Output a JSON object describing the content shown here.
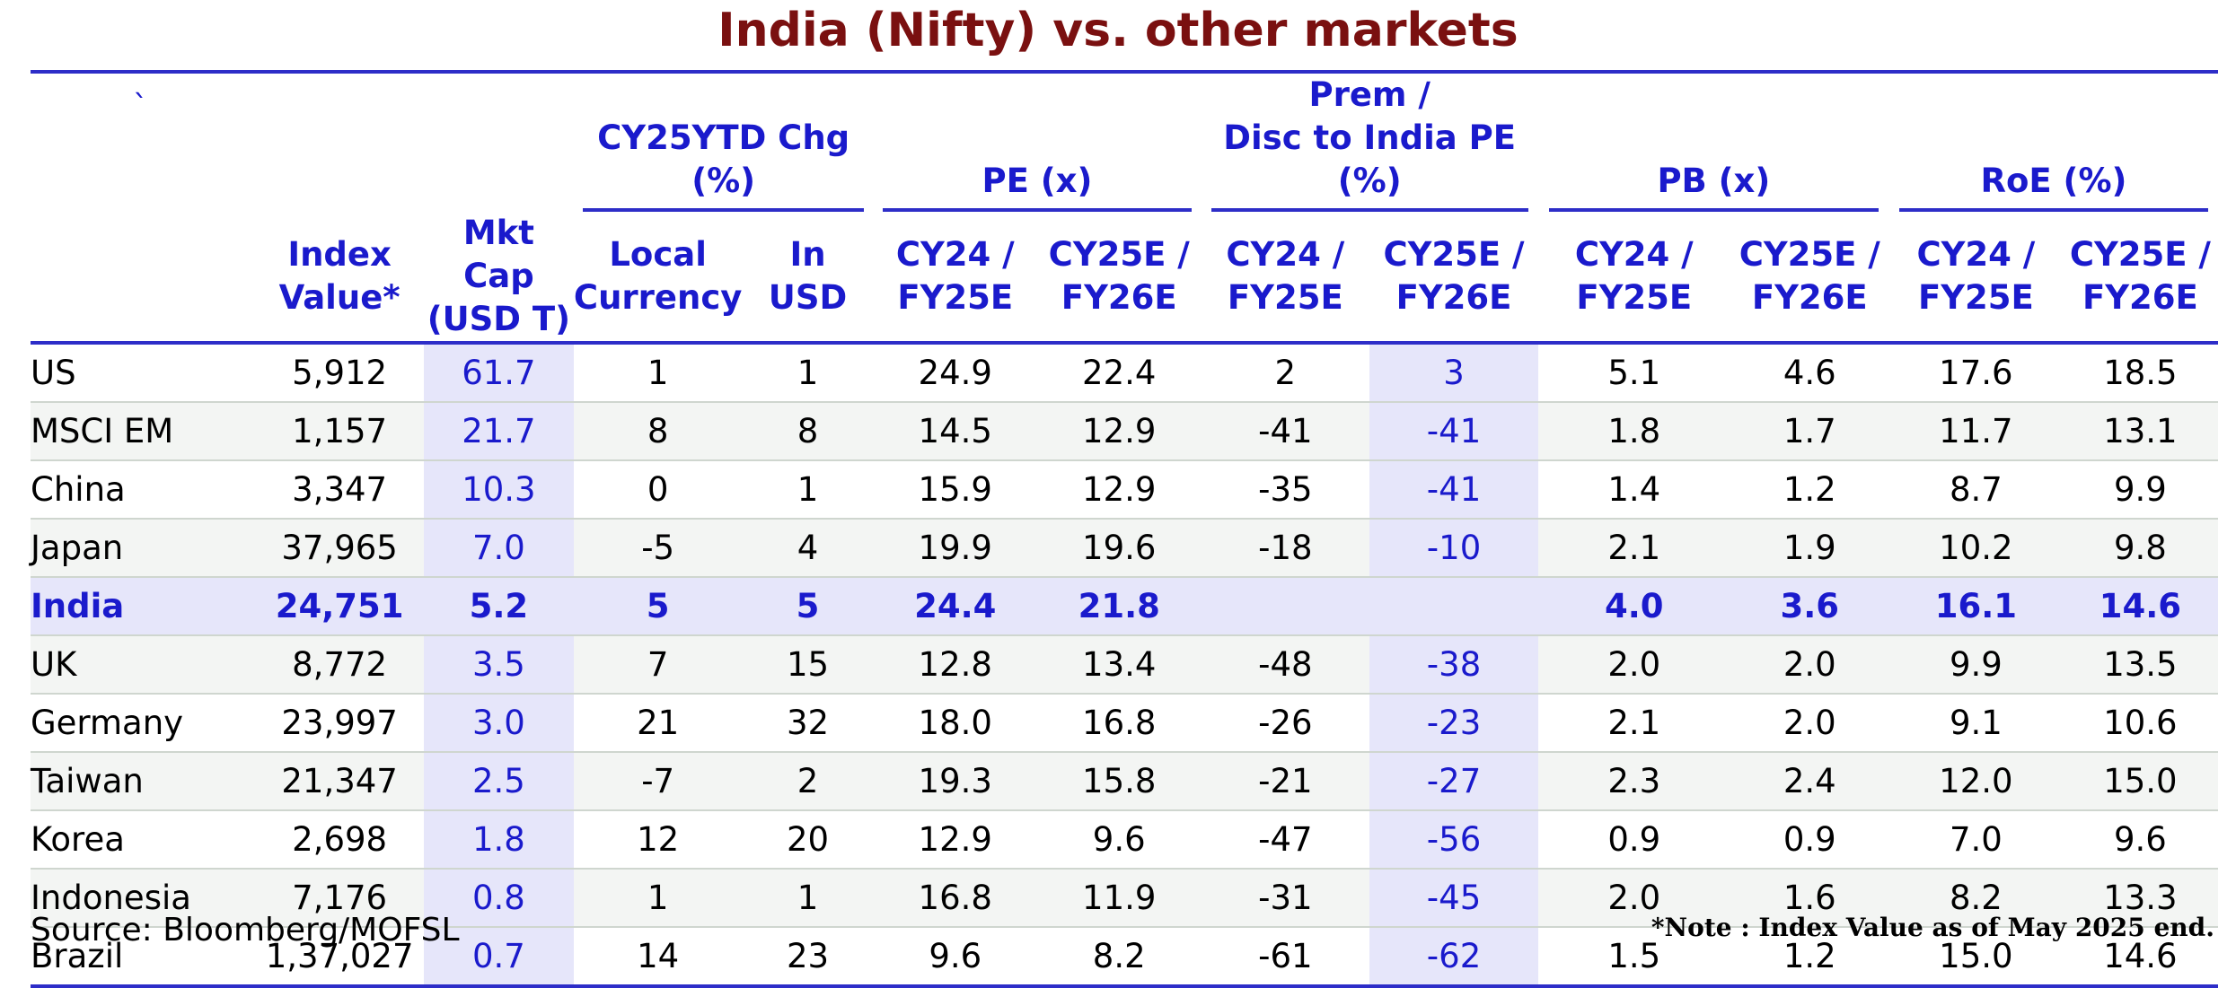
{
  "title": "India (Nifty) vs. other markets",
  "header_mark": "`",
  "group_headers": {
    "chg": "CY25YTD Chg (%)",
    "pe": "PE (x)",
    "prem_line1": "Prem /",
    "prem_line2": "Disc to India PE (%)",
    "pb": "PB (x)",
    "roe": "RoE (%)"
  },
  "sub_headers": {
    "index": [
      "Index",
      "Value*"
    ],
    "mcap": [
      "Mkt Cap",
      "(USD T)"
    ],
    "local": [
      "Local",
      "Currency"
    ],
    "usd": [
      "In",
      "USD"
    ],
    "cy24": [
      "CY24 /",
      "FY25E"
    ],
    "cy25": [
      "CY25E /",
      "FY26E"
    ]
  },
  "rows": [
    [
      "US",
      "5,912",
      "61.7",
      "1",
      "1",
      "24.9",
      "22.4",
      "2",
      "3",
      "5.1",
      "4.6",
      "17.6",
      "18.5"
    ],
    [
      "MSCI EM",
      "1,157",
      "21.7",
      "8",
      "8",
      "14.5",
      "12.9",
      "-41",
      "-41",
      "1.8",
      "1.7",
      "11.7",
      "13.1"
    ],
    [
      "China",
      "3,347",
      "10.3",
      "0",
      "1",
      "15.9",
      "12.9",
      "-35",
      "-41",
      "1.4",
      "1.2",
      "8.7",
      "9.9"
    ],
    [
      "Japan",
      "37,965",
      "7.0",
      "-5",
      "4",
      "19.9",
      "19.6",
      "-18",
      "-10",
      "2.1",
      "1.9",
      "10.2",
      "9.8"
    ],
    [
      "India",
      "24,751",
      "5.2",
      "5",
      "5",
      "24.4",
      "21.8",
      "",
      "",
      "4.0",
      "3.6",
      "16.1",
      "14.6"
    ],
    [
      "UK",
      "8,772",
      "3.5",
      "7",
      "15",
      "12.8",
      "13.4",
      "-48",
      "-38",
      "2.0",
      "2.0",
      "9.9",
      "13.5"
    ],
    [
      "Germany",
      "23,997",
      "3.0",
      "21",
      "32",
      "18.0",
      "16.8",
      "-26",
      "-23",
      "2.1",
      "2.0",
      "9.1",
      "10.6"
    ],
    [
      "Taiwan",
      "21,347",
      "2.5",
      "-7",
      "2",
      "19.3",
      "15.8",
      "-21",
      "-27",
      "2.3",
      "2.4",
      "12.0",
      "15.0"
    ],
    [
      "Korea",
      "2,698",
      "1.8",
      "12",
      "20",
      "12.9",
      "9.6",
      "-47",
      "-56",
      "0.9",
      "0.9",
      "7.0",
      "9.6"
    ],
    [
      "Indonesia",
      "7,176",
      "0.8",
      "1",
      "1",
      "16.8",
      "11.9",
      "-31",
      "-45",
      "2.0",
      "1.6",
      "8.2",
      "13.3"
    ],
    [
      "Brazil",
      "1,37,027",
      "0.7",
      "14",
      "23",
      "9.6",
      "8.2",
      "-61",
      "-62",
      "1.5",
      "1.2",
      "15.0",
      "14.6"
    ]
  ],
  "source": "Source: Bloomberg/MOFSL",
  "note": "*Note : Index Value as of May 2025 end.",
  "colors": {
    "title": "#7a1010",
    "header_text": "#1a1acc",
    "rule": "#2d2dc8",
    "highlight": "#e6e6fa",
    "alt_row": "#f3f5f3"
  }
}
